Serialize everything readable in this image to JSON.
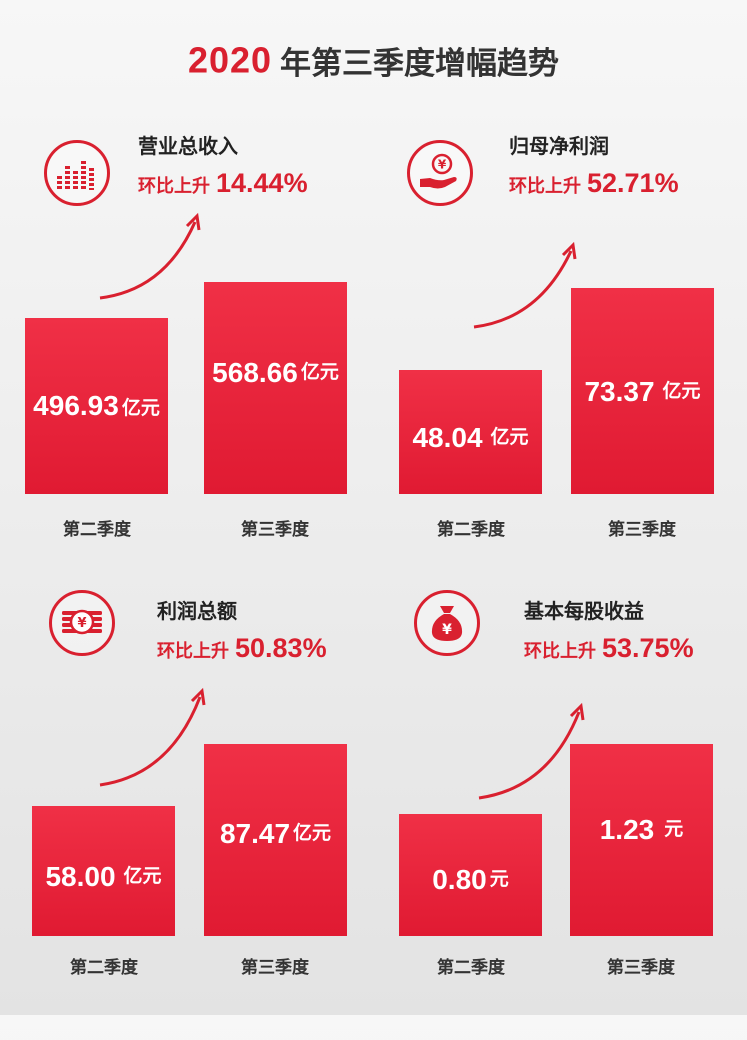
{
  "header": {
    "year": "2020",
    "title": "年第三季度增幅趋势"
  },
  "colors": {
    "accent": "#d9202f",
    "bar": "#ee2a40"
  },
  "chart_data": [
    {
      "type": "bar",
      "title": "营业总收入",
      "change_label": "环比上升",
      "change_value": "14.44%",
      "icon": "bar-chart-icon",
      "categories": [
        "第二季度",
        "第三季度"
      ],
      "values": [
        496.93,
        568.66
      ],
      "value_labels": [
        "496.93",
        "568.66"
      ],
      "unit": "亿元"
    },
    {
      "type": "bar",
      "title": "归母净利润",
      "change_label": "环比上升",
      "change_value": "52.71%",
      "icon": "hand-yuan-coin-icon",
      "categories": [
        "第二季度",
        "第三季度"
      ],
      "values": [
        48.04,
        73.37
      ],
      "value_labels": [
        "48.04",
        "73.37"
      ],
      "unit": "亿元"
    },
    {
      "type": "bar",
      "title": "利润总额",
      "change_label": "环比上升",
      "change_value": "50.83%",
      "icon": "coin-stack-icon",
      "categories": [
        "第二季度",
        "第三季度"
      ],
      "values": [
        58.0,
        87.47
      ],
      "value_labels": [
        "58.00",
        "87.47"
      ],
      "unit": "亿元"
    },
    {
      "type": "bar",
      "title": "基本每股收益",
      "change_label": "环比上升",
      "change_value": "53.75%",
      "icon": "money-bag-icon",
      "categories": [
        "第二季度",
        "第三季度"
      ],
      "values": [
        0.8,
        1.23
      ],
      "value_labels": [
        "0.80",
        "1.23"
      ],
      "unit": "元"
    }
  ]
}
